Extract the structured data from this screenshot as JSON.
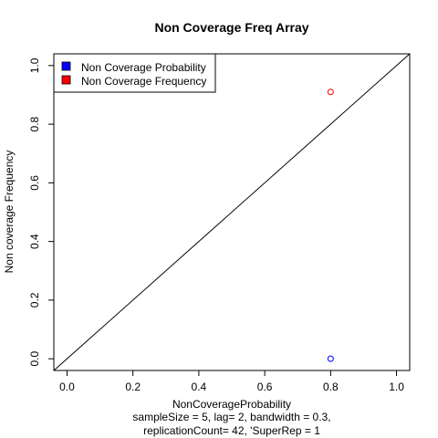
{
  "chart_data": {
    "type": "scatter",
    "title": "Non Coverage Freq Array",
    "xlabel": "NonCoverageProbability",
    "ylabel": "Non coverage Frequency",
    "subtitle_lines": [
      "sampleSize = 5, lag= 2, bandwidth = 0.3,",
      "replicationCount= 42, 'SuperRep = 1"
    ],
    "xlim": [
      -0.04,
      1.04
    ],
    "ylim": [
      -0.04,
      1.04
    ],
    "x_ticks": [
      0.0,
      0.2,
      0.4,
      0.6,
      0.8,
      1.0
    ],
    "y_ticks": [
      0.0,
      0.2,
      0.4,
      0.6,
      0.8,
      1.0
    ],
    "x_tick_labels": [
      "0.0",
      "0.2",
      "0.4",
      "0.6",
      "0.8",
      "1.0"
    ],
    "y_tick_labels": [
      "0.0",
      "0.2",
      "0.4",
      "0.6",
      "0.8",
      "1.0"
    ],
    "reference_line": "y = x",
    "legend_position": "top-left",
    "legend": [
      {
        "label": "Non Coverage Probability",
        "color": "#0000ff"
      },
      {
        "label": "Non Coverage Frequency",
        "color": "#ff0000"
      }
    ],
    "series": [
      {
        "name": "Non Coverage Probability",
        "color": "#0000ff",
        "marker": "open-circle",
        "points": [
          {
            "x": 0.8,
            "y": 0.0
          }
        ]
      },
      {
        "name": "Non Coverage Frequency",
        "color": "#ff0000",
        "marker": "open-circle",
        "points": [
          {
            "x": 0.8,
            "y": 0.91
          }
        ]
      }
    ]
  }
}
